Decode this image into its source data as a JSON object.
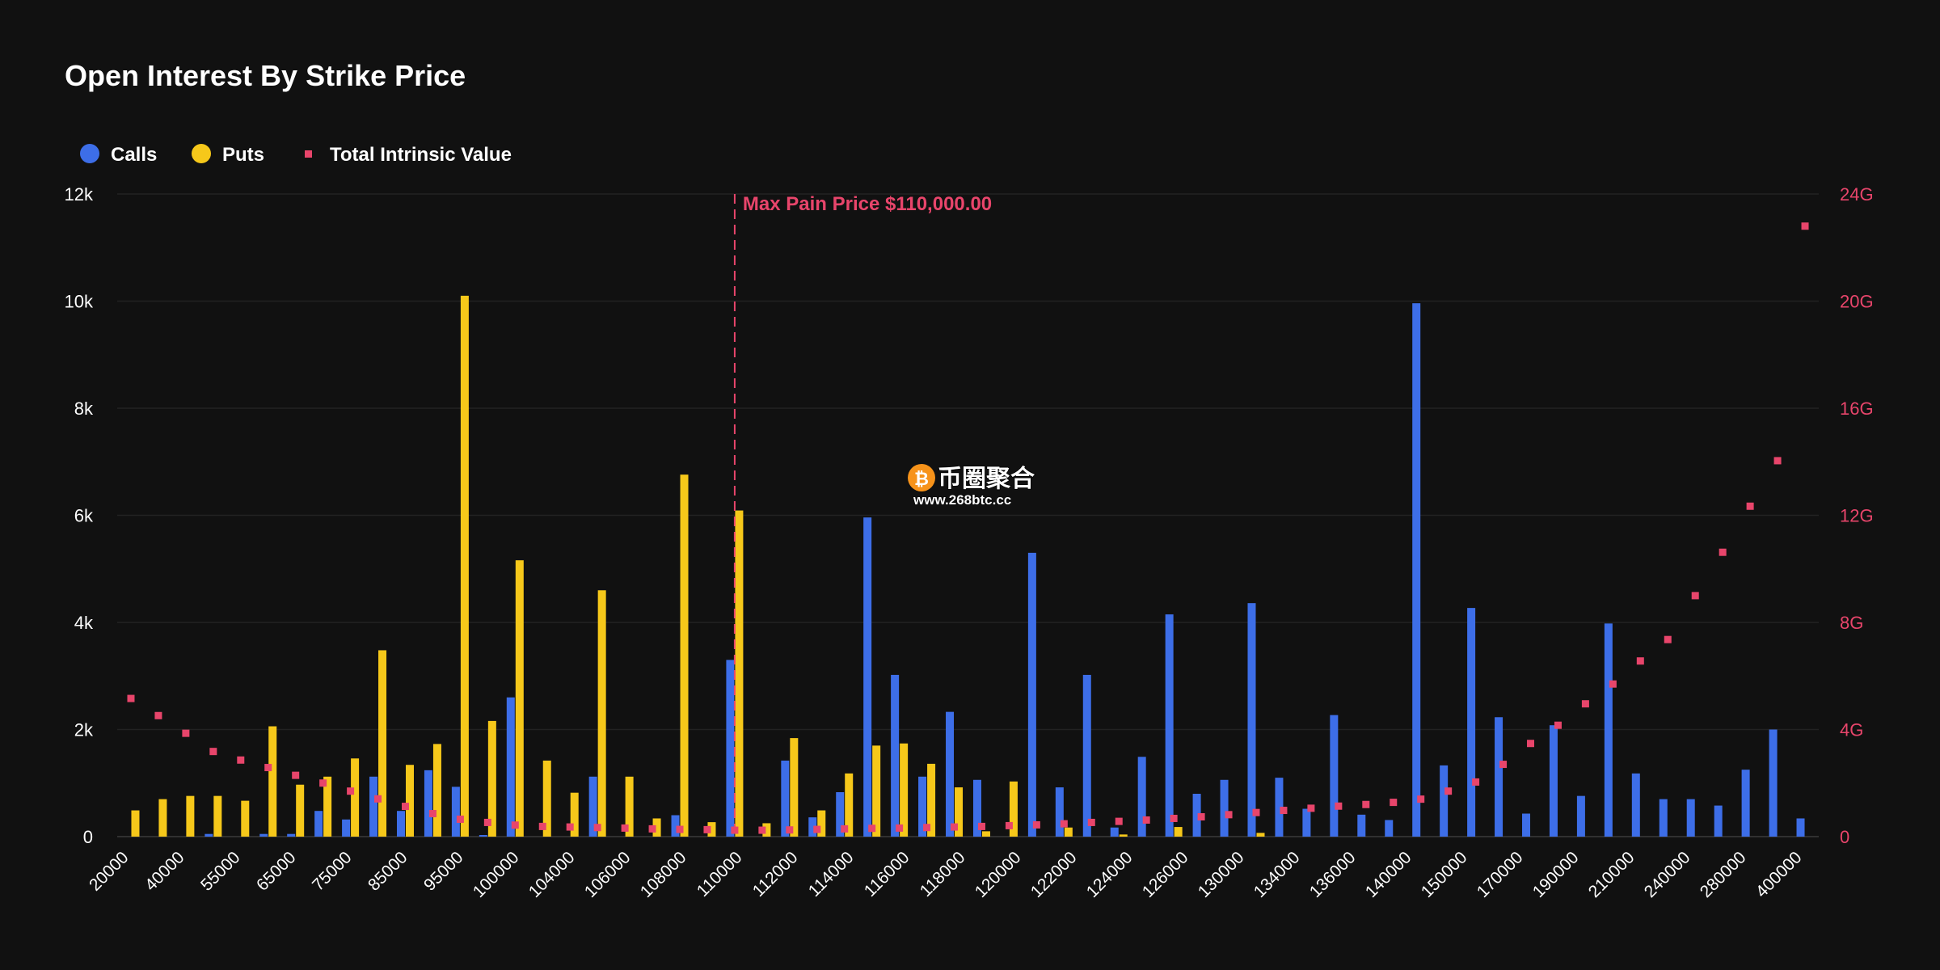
{
  "chart_data": {
    "type": "bar",
    "title": "Open Interest By Strike Price",
    "legend": {
      "placement": "top-left",
      "items": [
        {
          "label": "Calls",
          "color": "#3d6ee8",
          "marker": "circle"
        },
        {
          "label": "Puts",
          "color": "#f6c81a",
          "marker": "circle"
        },
        {
          "label": "Total Intrinsic Value",
          "color": "#e8456b",
          "marker": "square"
        }
      ]
    },
    "y_left": {
      "ticks": [
        "0",
        "2k",
        "4k",
        "6k",
        "8k",
        "10k",
        "12k"
      ],
      "min": 0,
      "max": 12000
    },
    "y_right": {
      "ticks": [
        "0",
        "4G",
        "8G",
        "12G",
        "16G",
        "20G",
        "24G"
      ],
      "min": 0,
      "max": 24000000000
    },
    "x_tick_labels": [
      "20000",
      "40000",
      "55000",
      "65000",
      "75000",
      "85000",
      "95000",
      "100000",
      "104000",
      "106000",
      "108000",
      "110000",
      "112000",
      "114000",
      "116000",
      "118000",
      "120000",
      "122000",
      "124000",
      "126000",
      "130000",
      "134000",
      "136000",
      "140000",
      "150000",
      "170000",
      "190000",
      "210000",
      "240000",
      "280000",
      "400000"
    ],
    "grid": true,
    "annotation": {
      "label": "Max Pain Price $110,000.00",
      "at_index": 22
    },
    "series": [
      {
        "name": "Calls",
        "axis": "left",
        "values": [
          0,
          0,
          0,
          50,
          0,
          50,
          50,
          480,
          320,
          1120,
          480,
          1240,
          930,
          30,
          2600,
          0,
          0,
          1120,
          0,
          0,
          400,
          0,
          3300,
          0,
          1420,
          360,
          830,
          5960,
          3020,
          1120,
          2330,
          1060,
          0,
          5300,
          920,
          3020,
          170,
          1490,
          4150,
          800,
          1060,
          4360,
          1100,
          520,
          2270,
          410,
          310,
          9960,
          1330,
          4270,
          2230,
          430,
          2080,
          760,
          3980,
          1180,
          700,
          700,
          580,
          1250,
          2000,
          340
        ]
      },
      {
        "name": "Puts",
        "axis": "left",
        "values": [
          490,
          700,
          760,
          760,
          670,
          2060,
          970,
          1120,
          1460,
          3480,
          1340,
          1730,
          10100,
          2160,
          5160,
          1420,
          820,
          4600,
          1120,
          340,
          6760,
          270,
          6090,
          250,
          1840,
          490,
          1180,
          1700,
          1740,
          1360,
          920,
          100,
          1030,
          0,
          170,
          0,
          40,
          0,
          180,
          0,
          0,
          70,
          0,
          0,
          0,
          0,
          0,
          0,
          0,
          0,
          0,
          0,
          0,
          0,
          0,
          0,
          0,
          0,
          0,
          0,
          0,
          0
        ]
      },
      {
        "name": "Total Intrinsic Value",
        "axis": "right",
        "values": [
          5160000000,
          4520000000,
          3860000000,
          3180000000,
          2860000000,
          2580000000,
          2290000000,
          2000000000,
          1700000000,
          1410000000,
          1130000000,
          860000000,
          650000000,
          530000000,
          430000000,
          380000000,
          360000000,
          340000000,
          320000000,
          290000000,
          270000000,
          260000000,
          240000000,
          240000000,
          250000000,
          270000000,
          290000000,
          310000000,
          320000000,
          340000000,
          360000000,
          380000000,
          410000000,
          440000000,
          480000000,
          530000000,
          570000000,
          620000000,
          680000000,
          740000000,
          820000000,
          900000000,
          980000000,
          1060000000,
          1140000000,
          1200000000,
          1280000000,
          1400000000,
          1700000000,
          2040000000,
          2700000000,
          3480000000,
          4160000000,
          4960000000,
          5700000000,
          6560000000,
          7360000000,
          9000000000,
          10620000000,
          12340000000,
          14040000000,
          22800000000
        ]
      }
    ]
  },
  "watermark": {
    "name": "币圈聚合",
    "url": "www.268btc.cc"
  }
}
